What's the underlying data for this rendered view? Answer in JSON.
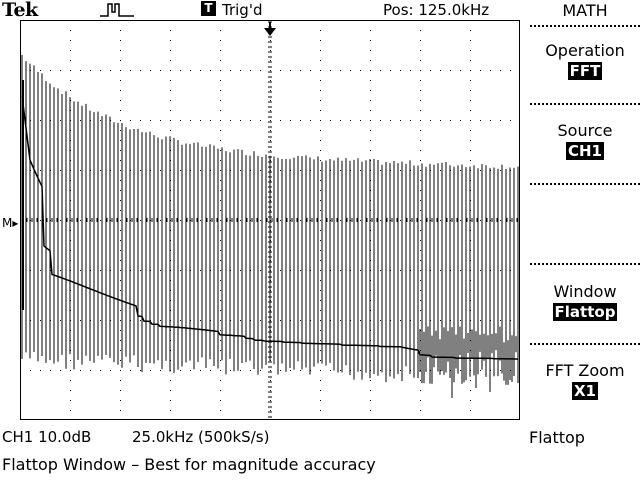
{
  "header": {
    "brand": "Tek",
    "trigger_box": "T",
    "trigger_status": "Trig'd",
    "position": "Pos: 125.0kHz"
  },
  "menu": {
    "title": "MATH",
    "items": [
      {
        "label": "Operation",
        "value": "FFT"
      },
      {
        "label": "Source",
        "value": "CH1"
      },
      {
        "label": "Window",
        "value": "Flattop"
      },
      {
        "label": "FFT Zoom",
        "value": "X1"
      }
    ]
  },
  "readout": {
    "channel_scale": "CH1 10.0dB",
    "timebase": "25.0kHz (500kS/s)",
    "window": "Flattop"
  },
  "message": "Flattop Window – Best for magnitude accuracy",
  "marker": "M▸",
  "colors": {
    "background": "#ffffff",
    "foreground": "#000000"
  }
}
